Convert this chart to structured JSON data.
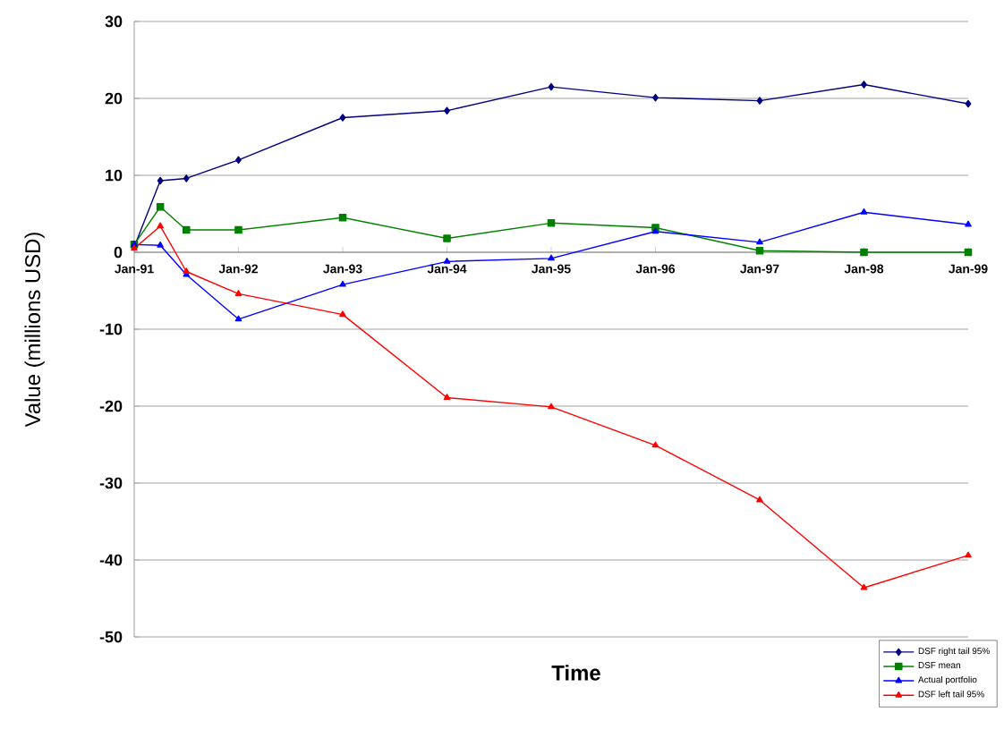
{
  "chart_data": {
    "type": "line",
    "xlabel": "Time",
    "ylabel": "Value (millions USD)",
    "x": [
      "1991-01",
      "1991-04",
      "1991-07",
      "1992-01",
      "1993-01",
      "1994-01",
      "1995-01",
      "1996-01",
      "1997-01",
      "1998-01",
      "1999-01"
    ],
    "xlim": [
      "1991-01",
      "1999-01"
    ],
    "xticks": [
      {
        "value": "1991-01",
        "label": "Jan-91"
      },
      {
        "value": "1992-01",
        "label": "Jan-92"
      },
      {
        "value": "1993-01",
        "label": "Jan-93"
      },
      {
        "value": "1994-01",
        "label": "Jan-94"
      },
      {
        "value": "1995-01",
        "label": "Jan-95"
      },
      {
        "value": "1996-01",
        "label": "Jan-96"
      },
      {
        "value": "1997-01",
        "label": "Jan-97"
      },
      {
        "value": "1998-01",
        "label": "Jan-98"
      },
      {
        "value": "1999-01",
        "label": "Jan-99"
      }
    ],
    "ylim": [
      -50,
      30
    ],
    "yticks": [
      -50,
      -40,
      -30,
      -20,
      -10,
      0,
      10,
      20,
      30
    ],
    "grid": "y",
    "legend": "bottom right",
    "series": [
      {
        "name": "DSF right tail 95%",
        "color": "#000080",
        "marker": "diamond",
        "values": [
          0.7,
          9.3,
          9.6,
          12,
          17.5,
          18.4,
          21.5,
          20.1,
          19.7,
          21.8,
          19.3
        ]
      },
      {
        "name": "DSF mean",
        "color": "#008000",
        "marker": "square",
        "values": [
          1,
          5.9,
          2.9,
          2.9,
          4.5,
          1.8,
          3.8,
          3.2,
          0.2,
          0,
          0
        ]
      },
      {
        "name": "Actual portfolio",
        "color": "#0000ff",
        "marker": "triangle",
        "values": [
          1,
          0.9,
          -2.9,
          -8.7,
          -4.2,
          -1.2,
          -0.8,
          2.7,
          1.3,
          5.2,
          3.6
        ]
      },
      {
        "name": "DSF left tail 95%",
        "color": "#ff0000",
        "marker": "triangle",
        "values": [
          0.5,
          3.4,
          -2.5,
          -5.4,
          -8.1,
          -18.9,
          -20.1,
          -25.1,
          -32.2,
          -43.6,
          -39.4
        ]
      }
    ]
  }
}
